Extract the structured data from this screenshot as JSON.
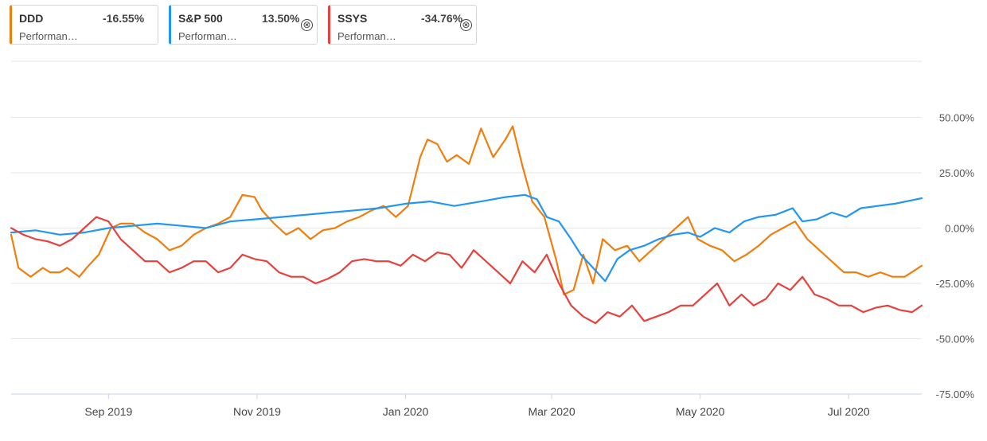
{
  "legend": [
    {
      "symbol": "DDD",
      "change": "-16.55%",
      "metric": "Performan…",
      "color": "#f07e0d",
      "closable": false
    },
    {
      "symbol": "S&P 500",
      "change": "13.50%",
      "metric": "Performan…",
      "color": "#2196f3",
      "closable": true,
      "close_icon": "⊗"
    },
    {
      "symbol": "SSYS",
      "change": "-34.76%",
      "metric": "Performan…",
      "color": "#e8413c",
      "closable": true,
      "close_icon": "⊗"
    }
  ],
  "chart_data": {
    "type": "line",
    "title": "",
    "ylabel": "",
    "xlabel": "",
    "ylim": [
      -75,
      75
    ],
    "xlim": [
      "2019-07-23",
      "2020-07-31"
    ],
    "y_ticks": [
      50,
      25,
      0,
      -25,
      -50,
      -75
    ],
    "y_tick_labels": [
      "50.00%",
      "25.00%",
      "0.00%",
      "-25.00%",
      "-50.00%",
      "-75.00%"
    ],
    "x_ticks": [
      "2019-09-01",
      "2019-11-01",
      "2020-01-01",
      "2020-03-01",
      "2020-05-01",
      "2020-07-01"
    ],
    "x_tick_labels": [
      "Sep 2019",
      "Nov 2019",
      "Jan 2020",
      "Mar 2020",
      "May 2020",
      "Jul 2020"
    ],
    "grid": true,
    "legend_position": "top-left",
    "series": [
      {
        "name": "DDD",
        "color": "#f07e0d",
        "x": [
          "2019-07-23",
          "2019-07-26",
          "2019-07-31",
          "2019-08-05",
          "2019-08-08",
          "2019-08-12",
          "2019-08-15",
          "2019-08-20",
          "2019-08-23",
          "2019-08-28",
          "2019-09-02",
          "2019-09-06",
          "2019-09-11",
          "2019-09-16",
          "2019-09-21",
          "2019-09-26",
          "2019-10-01",
          "2019-10-06",
          "2019-10-11",
          "2019-10-16",
          "2019-10-21",
          "2019-10-26",
          "2019-10-31",
          "2019-11-03",
          "2019-11-08",
          "2019-11-13",
          "2019-11-18",
          "2019-11-23",
          "2019-11-28",
          "2019-12-03",
          "2019-12-08",
          "2019-12-13",
          "2019-12-18",
          "2019-12-23",
          "2019-12-28",
          "2020-01-02",
          "2020-01-07",
          "2020-01-10",
          "2020-01-14",
          "2020-01-18",
          "2020-01-22",
          "2020-01-27",
          "2020-02-01",
          "2020-02-06",
          "2020-02-11",
          "2020-02-14",
          "2020-02-18",
          "2020-02-22",
          "2020-02-27",
          "2020-03-03",
          "2020-03-06",
          "2020-03-10",
          "2020-03-14",
          "2020-03-18",
          "2020-03-22",
          "2020-03-27",
          "2020-04-01",
          "2020-04-06",
          "2020-04-11",
          "2020-04-16",
          "2020-04-21",
          "2020-04-26",
          "2020-04-30",
          "2020-05-05",
          "2020-05-10",
          "2020-05-15",
          "2020-05-20",
          "2020-05-25",
          "2020-05-30",
          "2020-06-04",
          "2020-06-09",
          "2020-06-14",
          "2020-06-19",
          "2020-06-24",
          "2020-06-29",
          "2020-07-04",
          "2020-07-09",
          "2020-07-14",
          "2020-07-19",
          "2020-07-24",
          "2020-07-31"
        ],
        "y": [
          -3,
          -18,
          -22,
          -18,
          -20,
          -20,
          -18,
          -22,
          -18,
          -12,
          0,
          2,
          2,
          -2,
          -5,
          -10,
          -8,
          -3,
          0,
          2,
          5,
          15,
          14,
          8,
          2,
          -3,
          0,
          -5,
          -1,
          0,
          3,
          5,
          8,
          10,
          5,
          10,
          32,
          40,
          38,
          30,
          33,
          29,
          45,
          32,
          40,
          46,
          28,
          12,
          5,
          -15,
          -30,
          -28,
          -12,
          -25,
          -5,
          -10,
          -8,
          -15,
          -10,
          -5,
          0,
          5,
          -5,
          -8,
          -10,
          -15,
          -12,
          -8,
          -3,
          0,
          3,
          -5,
          -10,
          -15,
          -20,
          -20,
          -22,
          -20,
          -22,
          -22,
          -17
        ]
      },
      {
        "name": "S&P 500",
        "color": "#2196f3",
        "x": [
          "2019-07-23",
          "2019-08-02",
          "2019-08-12",
          "2019-08-22",
          "2019-09-01",
          "2019-09-11",
          "2019-09-21",
          "2019-10-01",
          "2019-10-11",
          "2019-10-21",
          "2019-11-01",
          "2019-11-11",
          "2019-11-21",
          "2019-12-01",
          "2019-12-11",
          "2019-12-21",
          "2020-01-01",
          "2020-01-11",
          "2020-01-21",
          "2020-02-01",
          "2020-02-11",
          "2020-02-19",
          "2020-02-24",
          "2020-02-28",
          "2020-03-04",
          "2020-03-09",
          "2020-03-13",
          "2020-03-18",
          "2020-03-23",
          "2020-03-28",
          "2020-04-02",
          "2020-04-08",
          "2020-04-14",
          "2020-04-20",
          "2020-04-26",
          "2020-05-01",
          "2020-05-07",
          "2020-05-13",
          "2020-05-19",
          "2020-05-25",
          "2020-06-01",
          "2020-06-08",
          "2020-06-12",
          "2020-06-18",
          "2020-06-24",
          "2020-06-30",
          "2020-07-06",
          "2020-07-13",
          "2020-07-20",
          "2020-07-31"
        ],
        "y": [
          -2,
          -1,
          -3,
          -2,
          0,
          1,
          2,
          1,
          0,
          3,
          4,
          5,
          6,
          7,
          8,
          9,
          11,
          12,
          10,
          12,
          14,
          15,
          13,
          5,
          3,
          -5,
          -12,
          -18,
          -24,
          -14,
          -10,
          -8,
          -5,
          -3,
          -2,
          -4,
          0,
          -2,
          3,
          5,
          6,
          9,
          3,
          4,
          7,
          5,
          9,
          10,
          11,
          13.5
        ]
      },
      {
        "name": "SSYS",
        "color": "#e8413c",
        "x": [
          "2019-07-23",
          "2019-07-28",
          "2019-08-02",
          "2019-08-07",
          "2019-08-12",
          "2019-08-17",
          "2019-08-22",
          "2019-08-27",
          "2019-09-01",
          "2019-09-06",
          "2019-09-11",
          "2019-09-16",
          "2019-09-21",
          "2019-09-26",
          "2019-10-01",
          "2019-10-06",
          "2019-10-11",
          "2019-10-16",
          "2019-10-21",
          "2019-10-26",
          "2019-10-31",
          "2019-11-05",
          "2019-11-10",
          "2019-11-15",
          "2019-11-20",
          "2019-11-25",
          "2019-11-30",
          "2019-12-05",
          "2019-12-10",
          "2019-12-15",
          "2019-12-20",
          "2019-12-25",
          "2019-12-30",
          "2020-01-04",
          "2020-01-09",
          "2020-01-14",
          "2020-01-19",
          "2020-01-24",
          "2020-01-29",
          "2020-02-03",
          "2020-02-08",
          "2020-02-13",
          "2020-02-18",
          "2020-02-23",
          "2020-02-28",
          "2020-03-04",
          "2020-03-09",
          "2020-03-14",
          "2020-03-19",
          "2020-03-24",
          "2020-03-29",
          "2020-04-03",
          "2020-04-08",
          "2020-04-13",
          "2020-04-18",
          "2020-04-23",
          "2020-04-28",
          "2020-05-03",
          "2020-05-08",
          "2020-05-13",
          "2020-05-18",
          "2020-05-23",
          "2020-05-28",
          "2020-06-02",
          "2020-06-07",
          "2020-06-12",
          "2020-06-17",
          "2020-06-22",
          "2020-06-27",
          "2020-07-02",
          "2020-07-07",
          "2020-07-12",
          "2020-07-17",
          "2020-07-22",
          "2020-07-27",
          "2020-07-31"
        ],
        "y": [
          0,
          -3,
          -5,
          -6,
          -8,
          -5,
          0,
          5,
          3,
          -5,
          -10,
          -15,
          -15,
          -20,
          -18,
          -15,
          -15,
          -20,
          -18,
          -12,
          -14,
          -15,
          -20,
          -22,
          -22,
          -25,
          -23,
          -20,
          -15,
          -14,
          -15,
          -15,
          -17,
          -12,
          -15,
          -11,
          -12,
          -18,
          -10,
          -15,
          -20,
          -25,
          -15,
          -20,
          -12,
          -25,
          -35,
          -40,
          -43,
          -38,
          -40,
          -35,
          -42,
          -40,
          -38,
          -35,
          -35,
          -30,
          -25,
          -35,
          -30,
          -35,
          -32,
          -25,
          -28,
          -22,
          -30,
          -32,
          -35,
          -35,
          -38,
          -36,
          -35,
          -37,
          -38,
          -35
        ]
      }
    ]
  }
}
